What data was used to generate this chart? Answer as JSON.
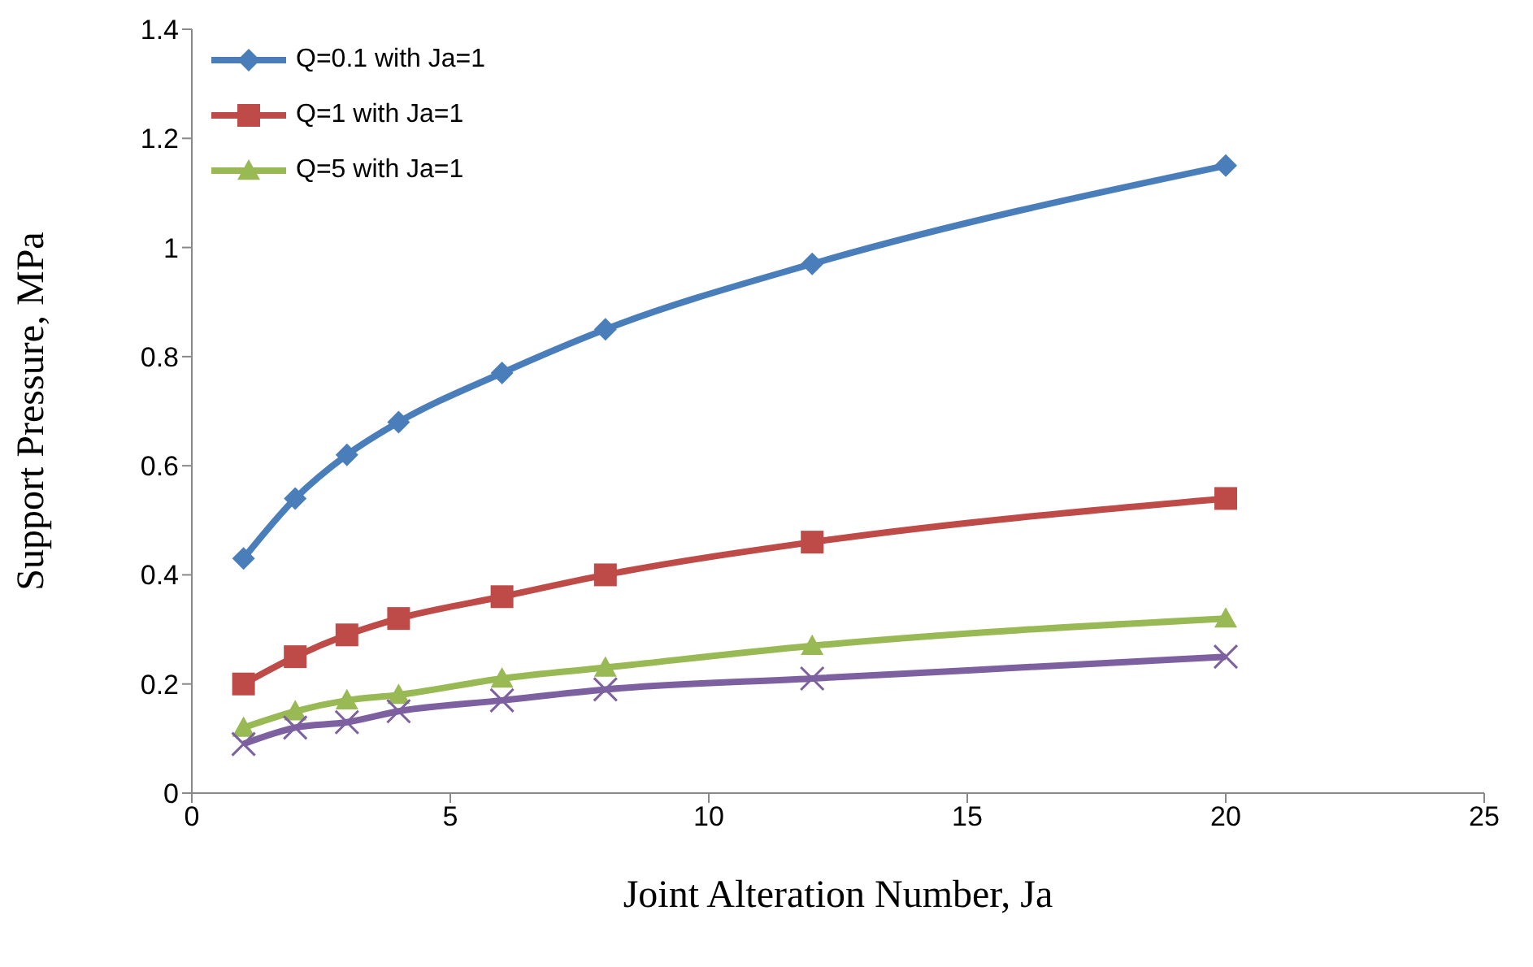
{
  "chart_data": {
    "type": "line",
    "xlabel": "Joint Alteration Number, Ja",
    "ylabel": "Support Pressure, MPa",
    "x": [
      1,
      2,
      3,
      4,
      6,
      8,
      12,
      20
    ],
    "series": [
      {
        "name": "Q=0.1 with Ja=1",
        "color": "#4a7ebb",
        "marker": "diamond",
        "values": [
          0.43,
          0.54,
          0.62,
          0.68,
          0.77,
          0.85,
          0.97,
          1.15
        ]
      },
      {
        "name": "Q=1 with Ja=1",
        "color": "#be4b48",
        "marker": "square",
        "values": [
          0.2,
          0.25,
          0.29,
          0.32,
          0.36,
          0.4,
          0.46,
          0.54
        ]
      },
      {
        "name": "Q=5 with Ja=1",
        "color": "#98b954",
        "marker": "triangle",
        "values": [
          0.12,
          0.15,
          0.17,
          0.18,
          0.21,
          0.23,
          0.27,
          0.32
        ]
      },
      {
        "color": "#7d60a0",
        "marker": "cross",
        "values": [
          0.09,
          0.12,
          0.13,
          0.15,
          0.17,
          0.19,
          0.21,
          0.25
        ]
      }
    ],
    "xlim": [
      0,
      25
    ],
    "xticks": [
      0,
      5,
      10,
      15,
      20,
      25
    ],
    "ylim": [
      0,
      1.4
    ],
    "yticks": [
      0,
      0.2,
      0.4,
      0.6,
      0.8,
      1,
      1.2,
      1.4
    ],
    "grid": false,
    "legend": "top left"
  }
}
